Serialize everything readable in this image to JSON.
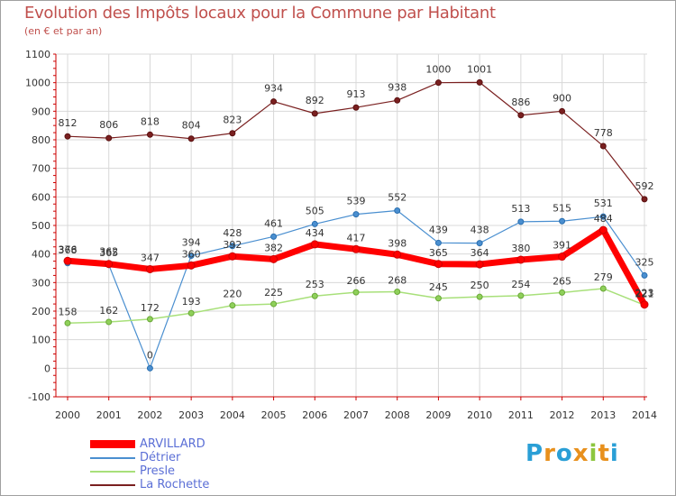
{
  "header": {
    "title": "Evolution des Impôts locaux pour la Commune par Habitant",
    "subtitle": "(en € et par an)"
  },
  "logo": {
    "text": "Proxiti"
  },
  "colors": {
    "axis": "#cc0000",
    "grid": "#d8d8d8",
    "ARVILLARD": "#ff0000",
    "Détrier": "#4a8fd0",
    "Presle": "#a8e07a",
    "La Rochette": "#7a2020"
  },
  "chart_data": {
    "type": "line",
    "title": "Evolution des Impôts locaux pour la Commune par Habitant",
    "subtitle": "(en € et par an)",
    "xlabel": "",
    "ylabel": "",
    "ylim": [
      -100,
      1100
    ],
    "yticks": [
      -100,
      0,
      100,
      200,
      300,
      400,
      500,
      600,
      700,
      800,
      900,
      1000,
      1100
    ],
    "grid": true,
    "legend_position": "bottom-left",
    "x": [
      "2000",
      "2001",
      "2002",
      "2003",
      "2004",
      "2005",
      "2006",
      "2007",
      "2008",
      "2009",
      "2010",
      "2011",
      "2012",
      "2013",
      "2014"
    ],
    "series": [
      {
        "name": "La Rochette",
        "values": [
          812,
          806,
          818,
          804,
          823,
          934,
          892,
          913,
          938,
          1000,
          1001,
          886,
          900,
          778,
          592
        ]
      },
      {
        "name": "Détrier",
        "values": [
          368,
          362,
          0,
          394,
          428,
          461,
          505,
          539,
          552,
          439,
          438,
          513,
          515,
          531,
          325
        ]
      },
      {
        "name": "Presle",
        "values": [
          158,
          162,
          172,
          193,
          220,
          225,
          253,
          266,
          268,
          245,
          250,
          254,
          265,
          279,
          221
        ]
      },
      {
        "name": "ARVILLARD",
        "values": [
          376,
          365,
          347,
          360,
          392,
          382,
          434,
          417,
          398,
          365,
          364,
          380,
          391,
          484,
          223
        ]
      }
    ]
  }
}
